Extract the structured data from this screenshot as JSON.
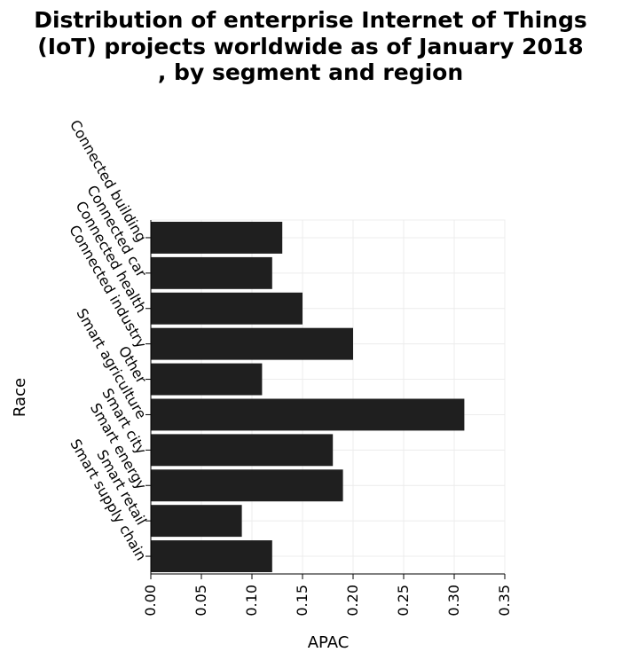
{
  "chart_data": {
    "type": "bar",
    "orientation": "horizontal",
    "title_lines": [
      "Distribution of enterprise Internet of Things",
      "(IoT) projects worldwide as of January 2018",
      ", by segment and region"
    ],
    "xlabel": "APAC",
    "ylabel": "Race",
    "categories": [
      "Connected building",
      "Connected car",
      "Connected health",
      "Connected industry",
      "Other",
      "Smart agriculture",
      "Smart city",
      "Smart energy",
      "Smart retail",
      "Smart supply chain"
    ],
    "values": [
      0.13,
      0.12,
      0.15,
      0.2,
      0.11,
      0.31,
      0.18,
      0.19,
      0.09,
      0.12
    ],
    "xlim": [
      0,
      0.35
    ],
    "xticks": [
      "0.00",
      "0.05",
      "0.10",
      "0.15",
      "0.20",
      "0.25",
      "0.30",
      "0.35"
    ],
    "grid": true,
    "bar_color": "#1f1f1f",
    "grid_color": "#ececec"
  }
}
